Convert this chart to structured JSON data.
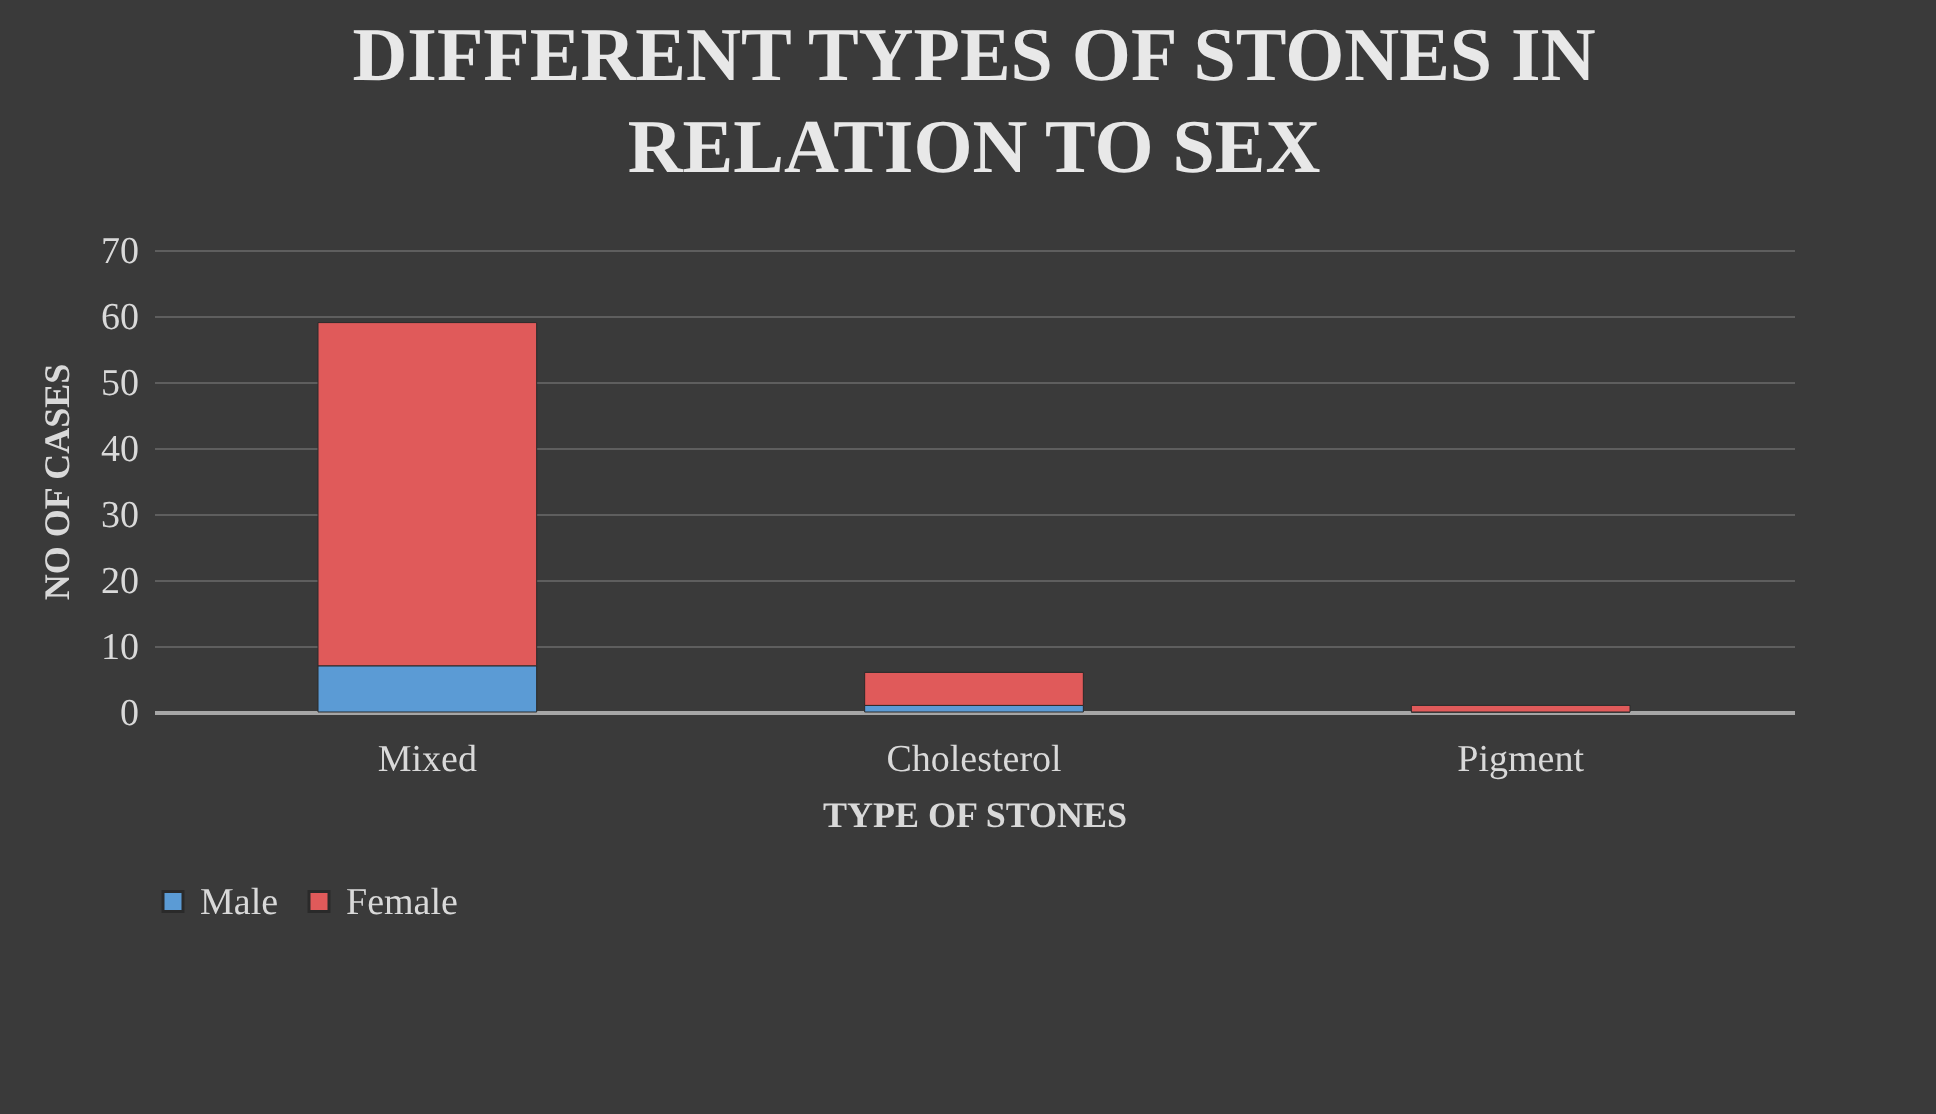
{
  "chart_data": {
    "type": "bar",
    "title": "DIFFERENT TYPES OF STONES IN RELATION TO SEX",
    "xlabel": "TYPE OF STONES",
    "ylabel": "NO OF CASES",
    "categories": [
      "Mixed",
      "Cholesterol",
      "Pigment"
    ],
    "stacked": true,
    "series": [
      {
        "name": "Male",
        "color": "#5b9bd5",
        "values": [
          7,
          1,
          0
        ]
      },
      {
        "name": "Female",
        "color": "#e05a5a",
        "values": [
          52,
          5,
          1
        ]
      }
    ],
    "ylim": [
      0,
      70
    ],
    "yticks": [
      0,
      10,
      20,
      30,
      40,
      50,
      60,
      70
    ],
    "grid": "y",
    "legend": "bottom"
  }
}
